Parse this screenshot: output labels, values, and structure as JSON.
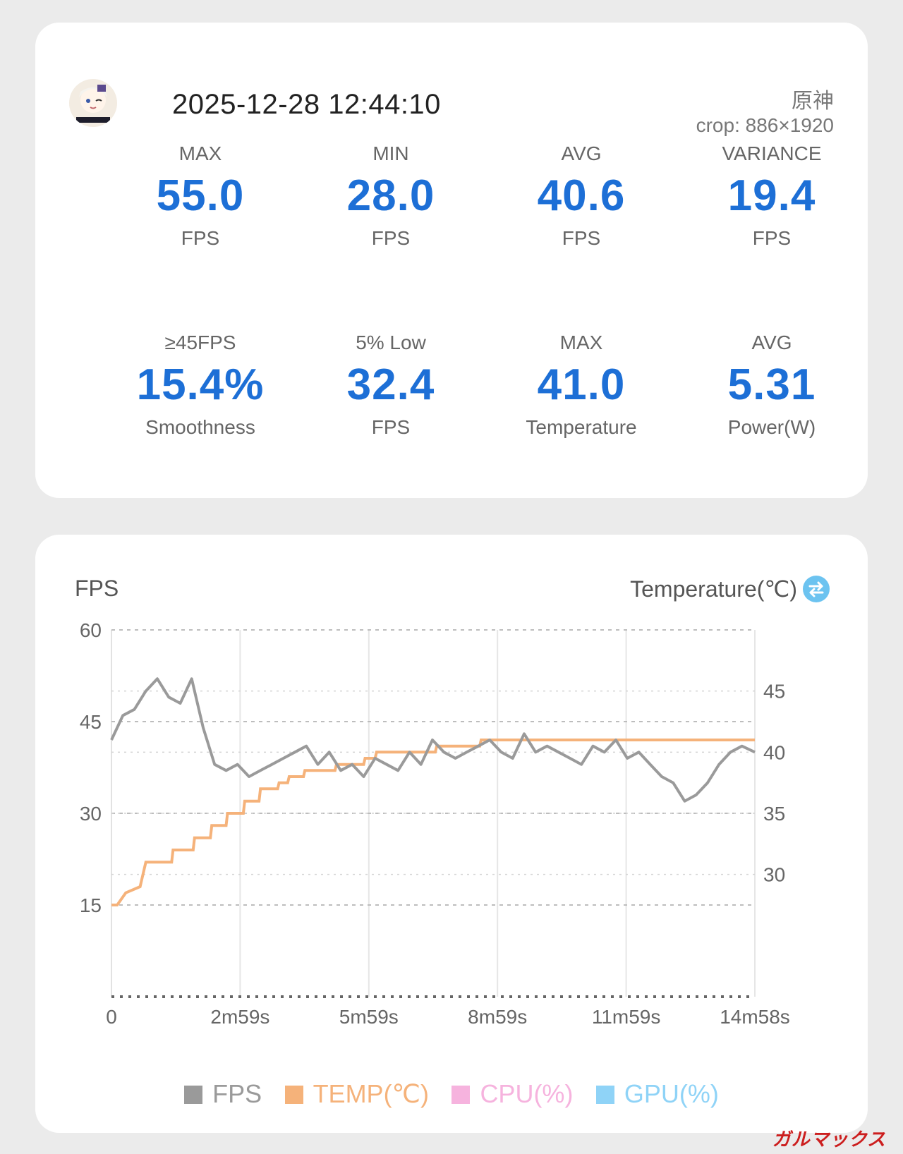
{
  "header": {
    "timestamp": "2025-12-28 12:44:10",
    "app_name": "原神",
    "crop": "crop: 886×1920"
  },
  "stats": [
    {
      "label": "MAX",
      "value": "55.0",
      "unit": "FPS"
    },
    {
      "label": "MIN",
      "value": "28.0",
      "unit": "FPS"
    },
    {
      "label": "AVG",
      "value": "40.6",
      "unit": "FPS"
    },
    {
      "label": "VARIANCE",
      "value": "19.4",
      "unit": "FPS"
    },
    {
      "label": "≥45FPS",
      "value": "15.4%",
      "unit": "Smoothness"
    },
    {
      "label": "5% Low",
      "value": "32.4",
      "unit": "FPS"
    },
    {
      "label": "MAX",
      "value": "41.0",
      "unit": "Temperature"
    },
    {
      "label": "AVG",
      "value": "5.31",
      "unit": "Power(W)"
    }
  ],
  "colors": {
    "accent": "#1d6fd6",
    "fps": "#9a9a9a",
    "temp": "#f5b27a",
    "cpu": "#f6b3de",
    "gpu": "#8fd3f7"
  },
  "chart": {
    "left_title": "FPS",
    "right_title": "Temperature(℃)",
    "swap_icon": "swap-icon",
    "legend": [
      "FPS",
      "TEMP(℃)",
      "CPU(%)",
      "GPU(%)"
    ]
  },
  "watermark": "ガルマックス",
  "chart_data": {
    "type": "line",
    "x_ticks": [
      "0",
      "2m59s",
      "5m59s",
      "8m59s",
      "11m59s",
      "14m58s"
    ],
    "x_range_seconds": [
      0,
      898
    ],
    "y_left_ticks": [
      "60",
      "45",
      "30",
      "15"
    ],
    "y_left_range": [
      0,
      60
    ],
    "y_right_ticks": [
      "45",
      "40",
      "35",
      "30"
    ],
    "y_right_range": [
      20,
      50
    ],
    "grid": true,
    "legend_position": "bottom",
    "series": [
      {
        "name": "FPS",
        "axis": "left",
        "x": [
          0,
          16,
          32,
          48,
          64,
          80,
          96,
          112,
          128,
          144,
          160,
          176,
          192,
          208,
          224,
          240,
          256,
          272,
          288,
          304,
          320,
          336,
          352,
          368,
          384,
          400,
          416,
          432,
          448,
          464,
          480,
          496,
          512,
          528,
          544,
          560,
          576,
          592,
          608,
          624,
          640,
          656,
          672,
          688,
          704,
          720,
          736,
          752,
          768,
          784,
          800,
          816,
          832,
          848,
          864,
          880,
          898
        ],
        "values": [
          42,
          46,
          47,
          50,
          52,
          49,
          48,
          52,
          44,
          38,
          37,
          38,
          36,
          37,
          38,
          39,
          40,
          41,
          38,
          40,
          37,
          38,
          36,
          39,
          38,
          37,
          40,
          38,
          42,
          40,
          39,
          40,
          41,
          42,
          40,
          39,
          43,
          40,
          41,
          40,
          39,
          38,
          41,
          40,
          42,
          39,
          40,
          38,
          36,
          35,
          32,
          33,
          35,
          38,
          40,
          41,
          40
        ]
      },
      {
        "name": "TEMP(℃)",
        "axis": "right",
        "x": [
          0,
          8,
          20,
          40,
          48,
          84,
          86,
          114,
          116,
          138,
          140,
          160,
          162,
          184,
          186,
          206,
          208,
          232,
          234,
          246,
          248,
          268,
          270,
          312,
          314,
          352,
          354,
          368,
          370,
          452,
          454,
          514,
          516,
          634,
          636,
          696,
          698,
          780,
          782,
          898
        ],
        "values": [
          27.5,
          27.5,
          28.5,
          29.0,
          31.0,
          31.0,
          32.0,
          32.0,
          33.0,
          33.0,
          34.0,
          34.0,
          35.0,
          35.0,
          36.0,
          36.0,
          37.0,
          37.0,
          37.5,
          37.5,
          38.0,
          38.0,
          38.5,
          38.5,
          39.0,
          39.0,
          39.5,
          39.5,
          40.0,
          40.0,
          40.5,
          40.5,
          41.0,
          41.0,
          41.0,
          41.0,
          41.0,
          41.0,
          41.0,
          41.0
        ]
      }
    ],
    "legend_series_without_data": [
      "CPU(%)",
      "GPU(%)"
    ]
  }
}
